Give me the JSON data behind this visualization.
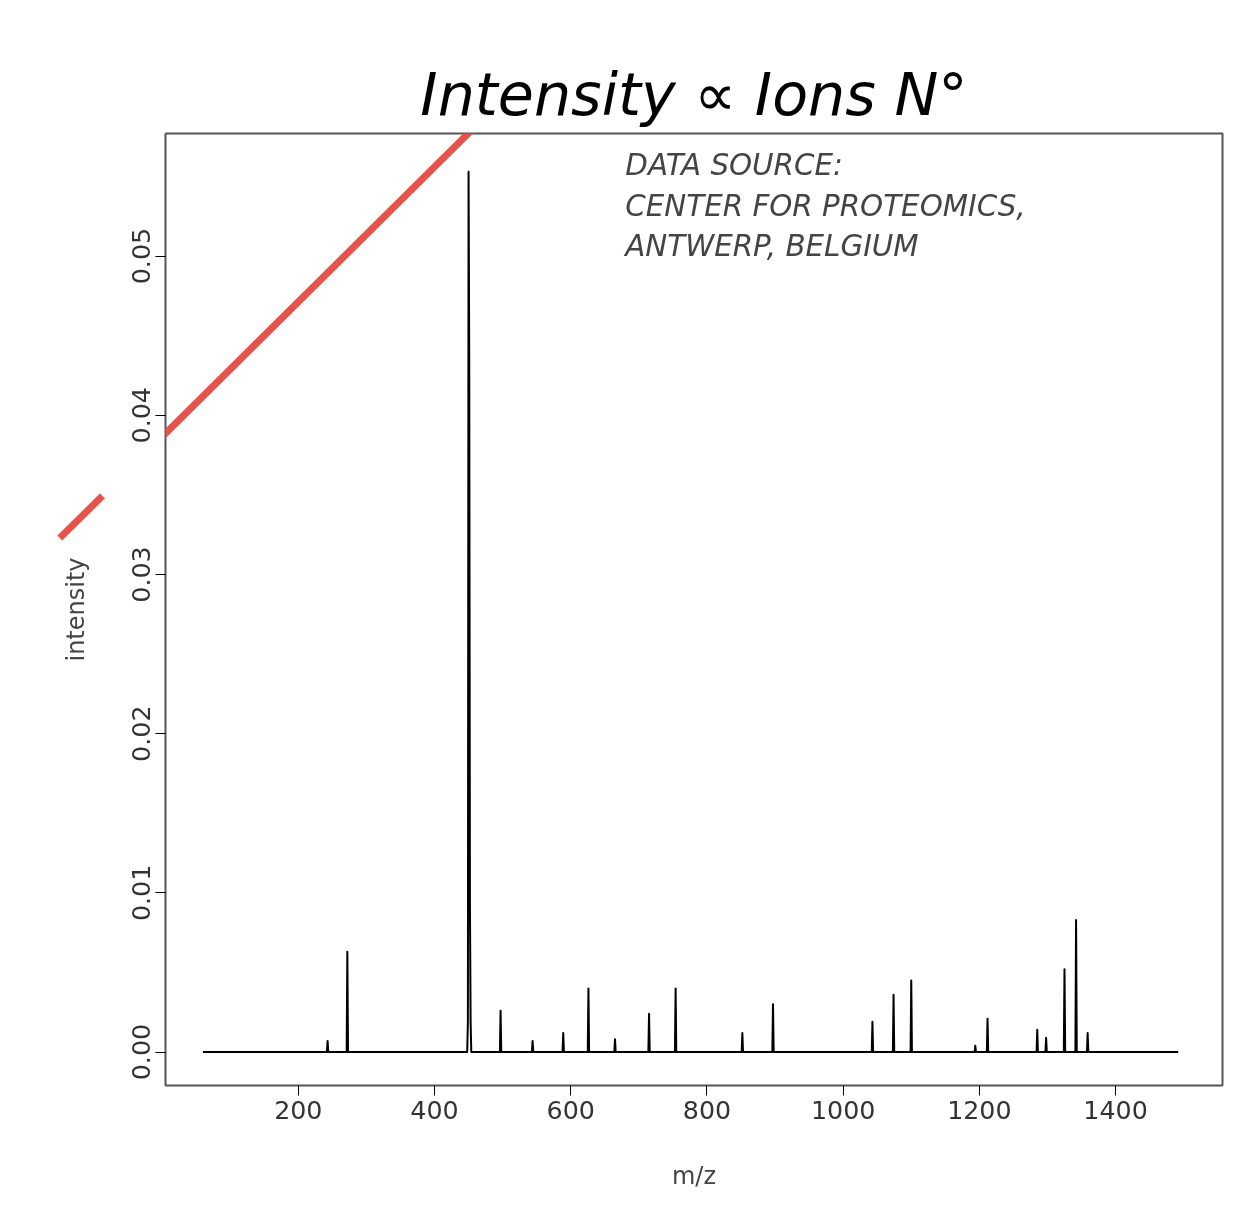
{
  "chart_data": {
    "type": "line",
    "title": "Intensity ∝ Ions N°",
    "xlabel": "m/z",
    "ylabel": "intensity",
    "color": "#000000",
    "x": [
      60,
      242,
      243,
      244,
      271,
      272,
      273,
      448,
      449,
      450,
      451,
      452,
      453,
      454,
      496,
      497,
      498,
      543,
      544,
      545,
      588,
      589,
      590,
      625,
      626,
      627,
      664,
      665,
      666,
      714,
      715,
      716,
      753,
      754,
      755,
      851,
      852,
      853,
      896,
      897,
      898,
      1042,
      1043,
      1044,
      1073,
      1074,
      1075,
      1099,
      1100,
      1101,
      1193,
      1194,
      1195,
      1211,
      1212,
      1213,
      1284,
      1285,
      1286,
      1297,
      1298,
      1299,
      1324,
      1325,
      1326,
      1341,
      1342,
      1343,
      1358,
      1359,
      1360,
      1492
    ],
    "values": [
      0,
      0,
      0.0007,
      0,
      0,
      0.0063,
      0,
      0,
      0.0019,
      0.0553,
      0.043,
      0.0093,
      0.0019,
      0,
      0,
      0.0026,
      0,
      0,
      0.0007,
      0,
      0,
      0.0012,
      0,
      0,
      0.004,
      0,
      0,
      0.0008,
      0,
      0,
      0.0024,
      0,
      0,
      0.004,
      0,
      0,
      0.0012,
      0,
      0,
      0.003,
      0,
      0,
      0.0019,
      0,
      0,
      0.0036,
      0,
      0,
      0.0045,
      0,
      0,
      0.0004,
      0,
      0,
      0.0021,
      0,
      0,
      0.0014,
      0,
      0,
      0.0009,
      0,
      0,
      0.0052,
      0,
      0,
      0.0083,
      0,
      0,
      0.0012,
      0,
      0
    ],
    "xlim": [
      5,
      1557
    ],
    "ylim": [
      -0.0021,
      0.0577
    ],
    "xticks": [
      200,
      400,
      600,
      800,
      1000,
      1200,
      1400
    ],
    "yticks": [
      {
        "value": 0,
        "label": "0.00"
      },
      0.01,
      0.02,
      0.03,
      0.04,
      0.05
    ],
    "annotations": [
      "DATA SOURCE:\nCENTER FOR PROTEOMICS,\nANTWERP, BELGIUM"
    ]
  }
}
